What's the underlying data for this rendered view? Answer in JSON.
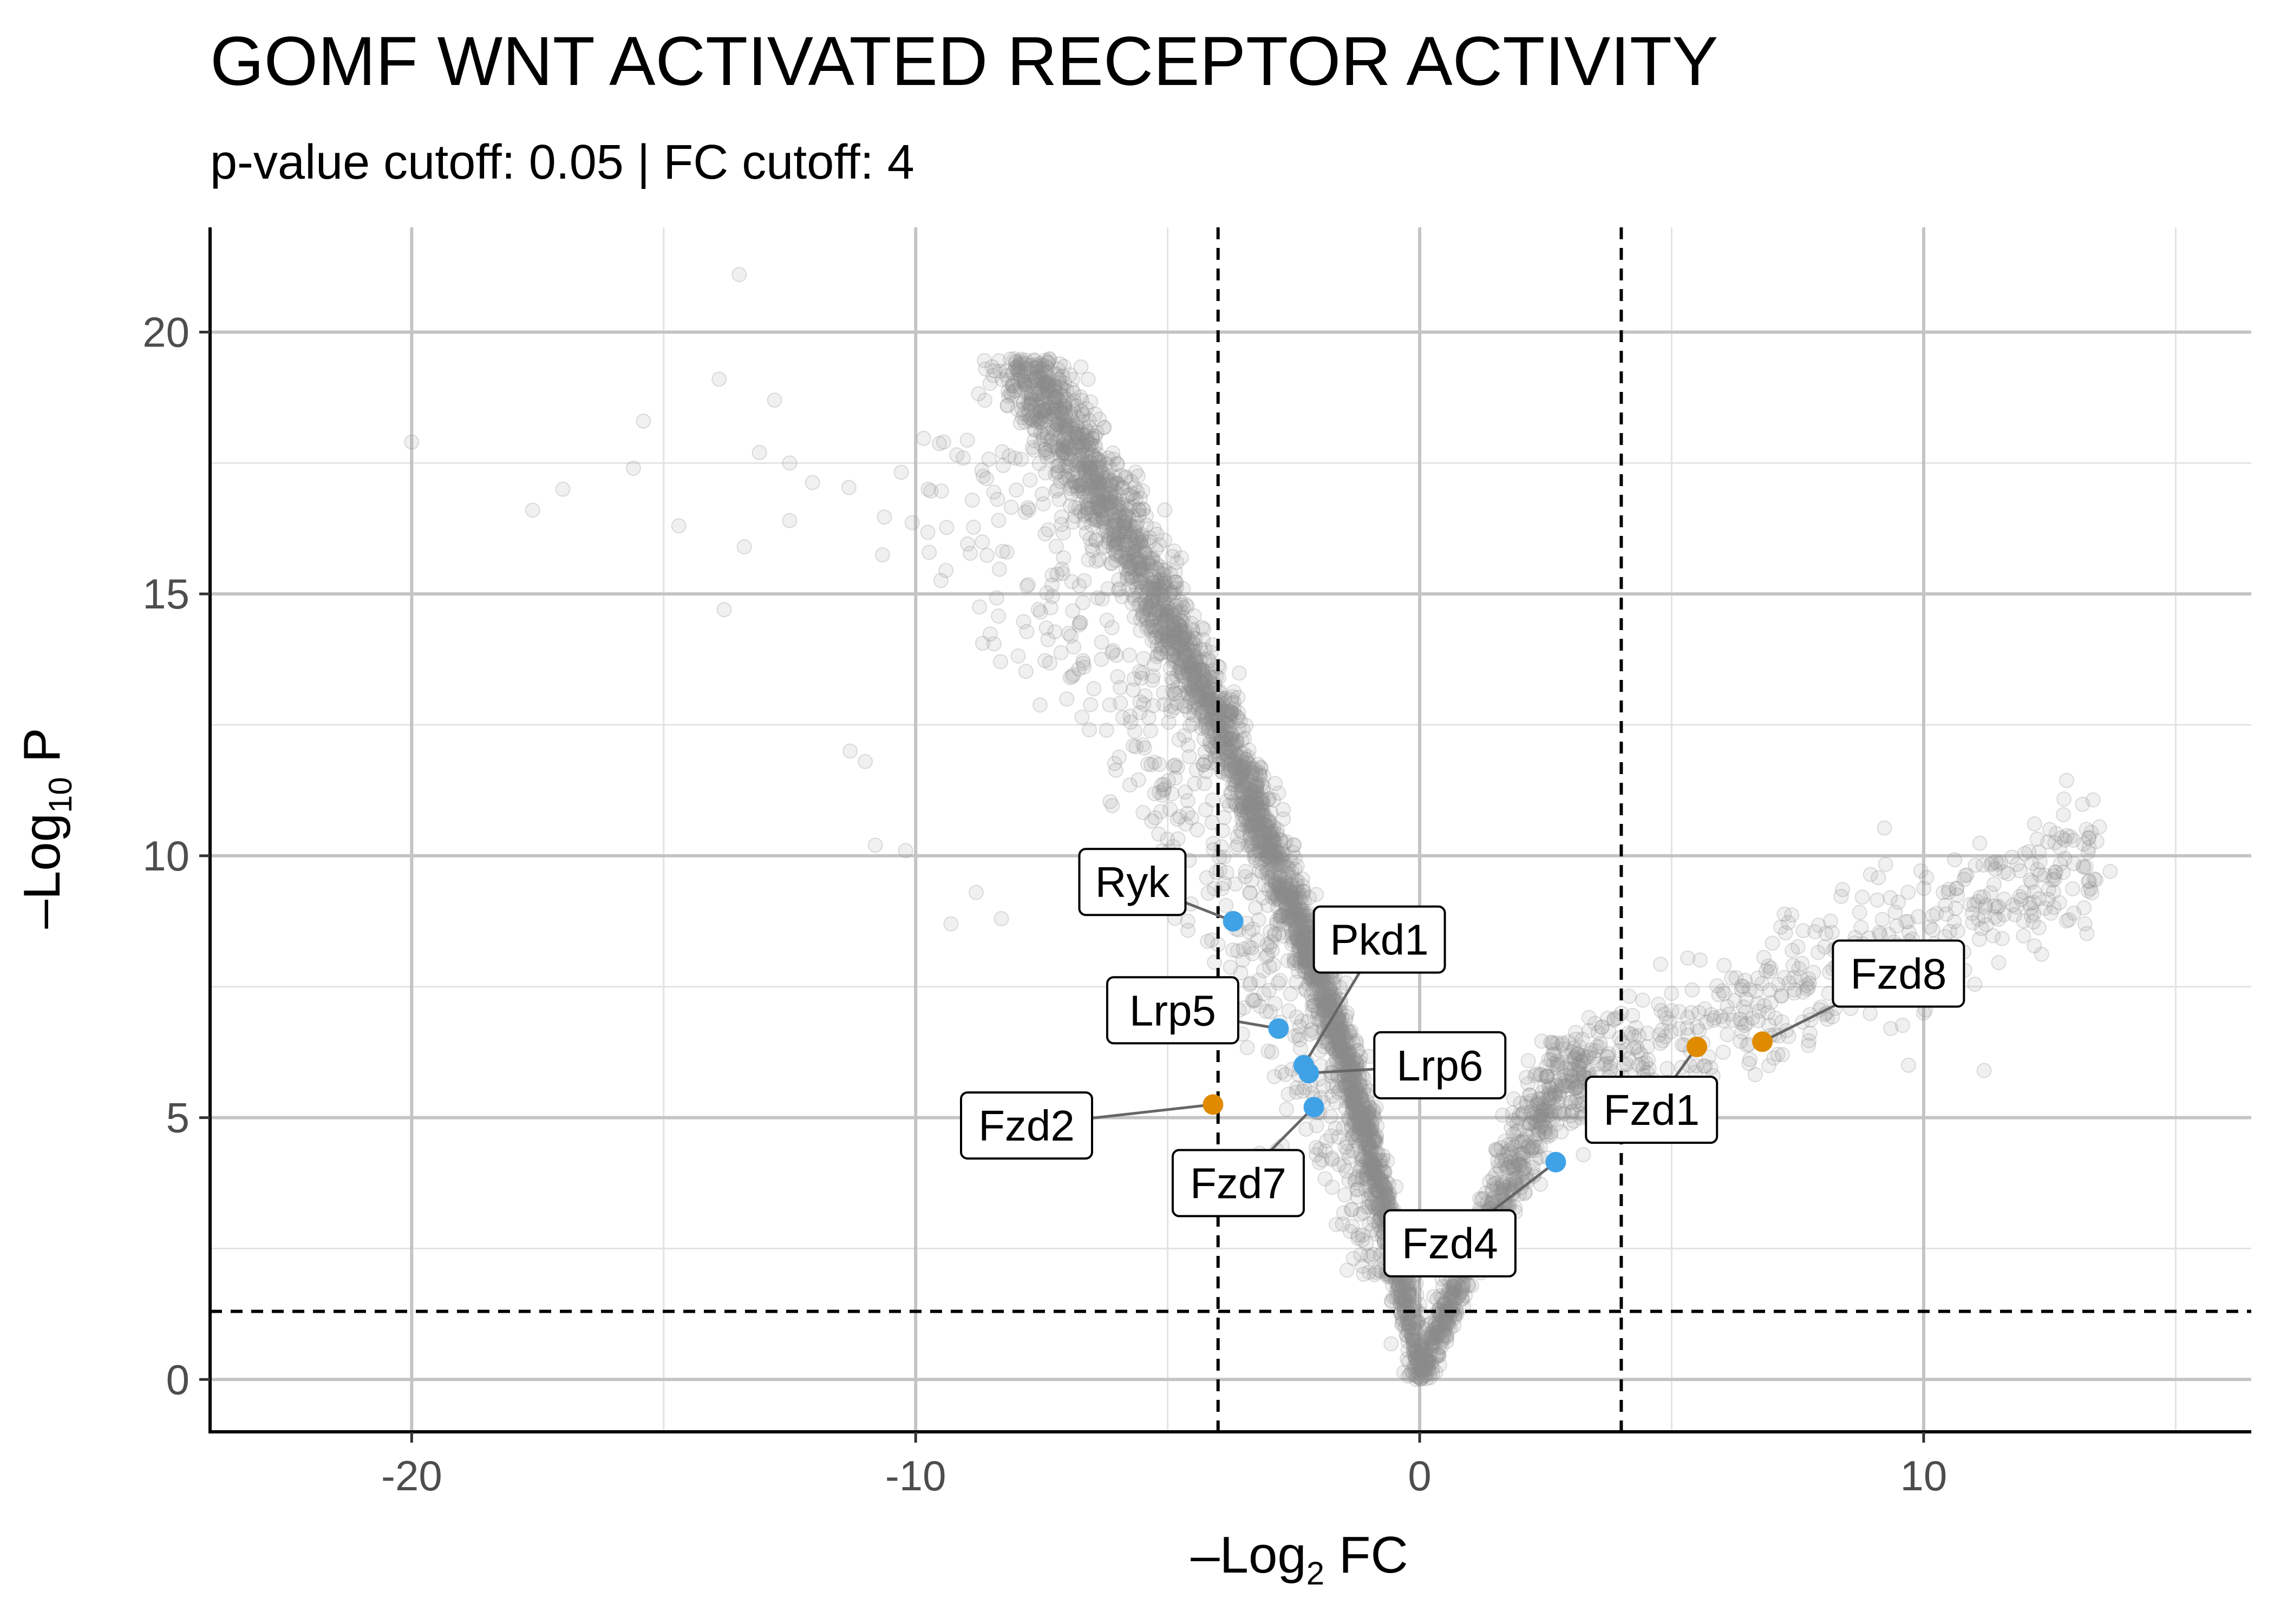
{
  "chart_data": {
    "type": "scatter",
    "title": "GOMF WNT ACTIVATED RECEPTOR ACTIVITY",
    "subtitle": "p-value cutoff: 0.05 | FC cutoff: 4",
    "xlabel": {
      "prefix": "–Log",
      "sub": "2",
      "suffix": " FC"
    },
    "ylabel": {
      "prefix": "–Log",
      "sub": "10",
      "suffix": " P"
    },
    "xlim": [
      -24,
      16.5
    ],
    "ylim": [
      -1,
      22
    ],
    "x_ticks": [
      {
        "value": -20,
        "label": "-20"
      },
      {
        "value": -10,
        "label": "-10"
      },
      {
        "value": 0,
        "label": "0"
      },
      {
        "value": 10,
        "label": "10"
      }
    ],
    "y_ticks": [
      {
        "value": 0,
        "label": "0"
      },
      {
        "value": 5,
        "label": "5"
      },
      {
        "value": 10,
        "label": "10"
      },
      {
        "value": 15,
        "label": "15"
      },
      {
        "value": 20,
        "label": "20"
      }
    ],
    "fc_cutoff_lines": [
      -4,
      4
    ],
    "p_cutoff_line": 1.3,
    "colors": {
      "background_points": "#8c8c8c",
      "blue": "#3fa2e6",
      "orange": "#e08a00"
    },
    "highlighted_genes": [
      {
        "gene": "Ryk",
        "x": -3.7,
        "y": 8.75,
        "color": "blue",
        "label_x": -5.7,
        "label_y": 9.5
      },
      {
        "gene": "Pkd1",
        "x": -2.3,
        "y": 6.0,
        "color": "blue",
        "label_x": -0.8,
        "label_y": 8.4
      },
      {
        "gene": "Lrp5",
        "x": -2.8,
        "y": 6.7,
        "color": "blue",
        "label_x": -4.9,
        "label_y": 7.05
      },
      {
        "gene": "Lrp6",
        "x": -2.2,
        "y": 5.85,
        "color": "blue",
        "label_x": 0.4,
        "label_y": 6.0
      },
      {
        "gene": "Fzd7",
        "x": -2.1,
        "y": 5.2,
        "color": "blue",
        "label_x": -3.6,
        "label_y": 3.75
      },
      {
        "gene": "Fzd2",
        "x": -4.1,
        "y": 5.25,
        "color": "orange",
        "label_x": -7.8,
        "label_y": 4.85
      },
      {
        "gene": "Fzd4",
        "x": 2.7,
        "y": 4.15,
        "color": "blue",
        "label_x": 0.6,
        "label_y": 2.6
      },
      {
        "gene": "Fzd1",
        "x": 5.5,
        "y": 6.35,
        "color": "orange",
        "label_x": 4.6,
        "label_y": 5.15
      },
      {
        "gene": "Fzd8",
        "x": 6.8,
        "y": 6.45,
        "color": "orange",
        "label_x": 9.5,
        "label_y": 7.75
      }
    ]
  }
}
